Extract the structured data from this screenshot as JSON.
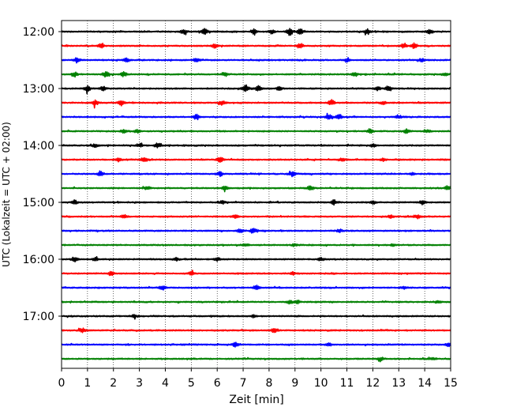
{
  "chart_data": {
    "type": "line",
    "title": "",
    "xlabel": "Zeit  [min]",
    "ylabel": "UTC (Lokalzeit = UTC + 02:00)",
    "xlim": [
      0,
      15
    ],
    "x_ticks": [
      "0",
      "1",
      "2",
      "3",
      "4",
      "5",
      "6",
      "7",
      "8",
      "9",
      "10",
      "11",
      "12",
      "13",
      "14",
      "15"
    ],
    "y_tick_labels": [
      "12:00",
      "13:00",
      "14:00",
      "15:00",
      "16:00",
      "17:00"
    ],
    "grid": "vertical dotted at each minute",
    "trace_colors": [
      "#000000",
      "#ff0000",
      "#0000ff",
      "#008000"
    ],
    "traces": [
      {
        "start": "12:00",
        "bursts": [
          [
            4.7,
            1.0
          ],
          [
            5.5,
            1.1
          ],
          [
            7.4,
            0.8
          ],
          [
            8.1,
            0.6
          ],
          [
            8.8,
            1.2
          ],
          [
            9.2,
            0.9
          ],
          [
            11.8,
            0.9
          ],
          [
            14.2,
            0.7
          ]
        ]
      },
      {
        "start": "12:15",
        "bursts": [
          [
            1.5,
            0.7
          ],
          [
            5.9,
            0.6
          ],
          [
            9.2,
            0.9
          ],
          [
            13.2,
            0.8
          ],
          [
            13.6,
            0.8
          ]
        ]
      },
      {
        "start": "12:30",
        "bursts": [
          [
            0.6,
            0.8
          ],
          [
            2.5,
            0.6
          ],
          [
            5.2,
            0.5
          ],
          [
            11.0,
            0.6
          ],
          [
            13.9,
            0.5
          ]
        ]
      },
      {
        "start": "12:45",
        "bursts": [
          [
            0.5,
            0.8
          ],
          [
            1.7,
            0.9
          ],
          [
            2.4,
            0.8
          ],
          [
            6.3,
            0.6
          ],
          [
            11.3,
            0.7
          ],
          [
            14.8,
            0.6
          ]
        ]
      },
      {
        "start": "13:00",
        "bursts": [
          [
            1.0,
            1.0
          ],
          [
            1.6,
            0.7
          ],
          [
            7.1,
            1.3
          ],
          [
            7.6,
            1.0
          ],
          [
            8.4,
            0.7
          ],
          [
            12.2,
            0.6
          ],
          [
            12.6,
            0.6
          ]
        ]
      },
      {
        "start": "13:15",
        "bursts": [
          [
            1.3,
            0.9
          ],
          [
            2.3,
            0.9
          ],
          [
            6.2,
            0.8
          ],
          [
            10.4,
            0.9
          ],
          [
            12.4,
            0.5
          ]
        ]
      },
      {
        "start": "13:30",
        "bursts": [
          [
            5.2,
            0.9
          ],
          [
            10.3,
            0.8
          ],
          [
            10.7,
            0.9
          ],
          [
            13.0,
            0.5
          ]
        ]
      },
      {
        "start": "13:45",
        "bursts": [
          [
            2.4,
            0.7
          ],
          [
            2.9,
            0.6
          ],
          [
            11.9,
            0.8
          ],
          [
            13.3,
            0.7
          ],
          [
            14.1,
            0.5
          ]
        ]
      },
      {
        "start": "14:00",
        "bursts": [
          [
            1.3,
            0.6
          ],
          [
            3.0,
            0.6
          ],
          [
            3.7,
            0.8
          ],
          [
            12.0,
            0.5
          ]
        ]
      },
      {
        "start": "14:15",
        "bursts": [
          [
            2.2,
            0.8
          ],
          [
            3.2,
            0.6
          ],
          [
            6.1,
            1.0
          ],
          [
            10.8,
            0.6
          ],
          [
            12.4,
            0.5
          ]
        ]
      },
      {
        "start": "14:30",
        "bursts": [
          [
            1.5,
            0.9
          ],
          [
            6.1,
            0.7
          ],
          [
            8.9,
            0.8
          ],
          [
            13.5,
            0.5
          ]
        ]
      },
      {
        "start": "14:45",
        "bursts": [
          [
            3.3,
            0.5
          ],
          [
            6.3,
            0.7
          ],
          [
            9.6,
            0.8
          ],
          [
            14.9,
            0.8
          ]
        ]
      },
      {
        "start": "15:00",
        "bursts": [
          [
            0.5,
            0.7
          ],
          [
            6.2,
            0.5
          ],
          [
            10.5,
            0.8
          ],
          [
            12.0,
            0.5
          ],
          [
            13.9,
            0.7
          ]
        ]
      },
      {
        "start": "15:15",
        "bursts": [
          [
            2.4,
            0.7
          ],
          [
            6.7,
            0.5
          ],
          [
            12.7,
            0.5
          ],
          [
            13.7,
            0.7
          ]
        ]
      },
      {
        "start": "15:30",
        "bursts": [
          [
            6.9,
            0.7
          ],
          [
            7.4,
            0.9
          ],
          [
            10.7,
            0.5
          ]
        ]
      },
      {
        "start": "15:45",
        "bursts": [
          [
            7.1,
            0.5
          ],
          [
            9.0,
            0.4
          ],
          [
            12.8,
            0.4
          ]
        ]
      },
      {
        "start": "16:00",
        "bursts": [
          [
            0.5,
            0.8
          ],
          [
            1.3,
            0.6
          ],
          [
            4.4,
            0.5
          ],
          [
            6.0,
            0.5
          ],
          [
            10.0,
            0.5
          ]
        ]
      },
      {
        "start": "16:15",
        "bursts": [
          [
            1.9,
            0.8
          ],
          [
            5.0,
            0.5
          ],
          [
            8.9,
            0.5
          ]
        ]
      },
      {
        "start": "16:30",
        "bursts": [
          [
            3.9,
            0.7
          ],
          [
            7.5,
            0.7
          ],
          [
            13.2,
            0.4
          ]
        ]
      },
      {
        "start": "16:45",
        "bursts": [
          [
            8.8,
            0.6
          ],
          [
            9.1,
            0.5
          ],
          [
            14.5,
            0.4
          ]
        ]
      },
      {
        "start": "17:00",
        "bursts": [
          [
            2.8,
            0.5
          ],
          [
            7.4,
            0.4
          ]
        ]
      },
      {
        "start": "17:15",
        "bursts": [
          [
            0.8,
            0.7
          ],
          [
            8.2,
            0.7
          ]
        ]
      },
      {
        "start": "17:30",
        "bursts": [
          [
            6.7,
            0.7
          ],
          [
            10.3,
            0.5
          ],
          [
            14.9,
            0.6
          ]
        ]
      },
      {
        "start": "17:45",
        "bursts": [
          [
            12.3,
            0.5
          ],
          [
            14.3,
            0.3
          ]
        ]
      }
    ]
  }
}
